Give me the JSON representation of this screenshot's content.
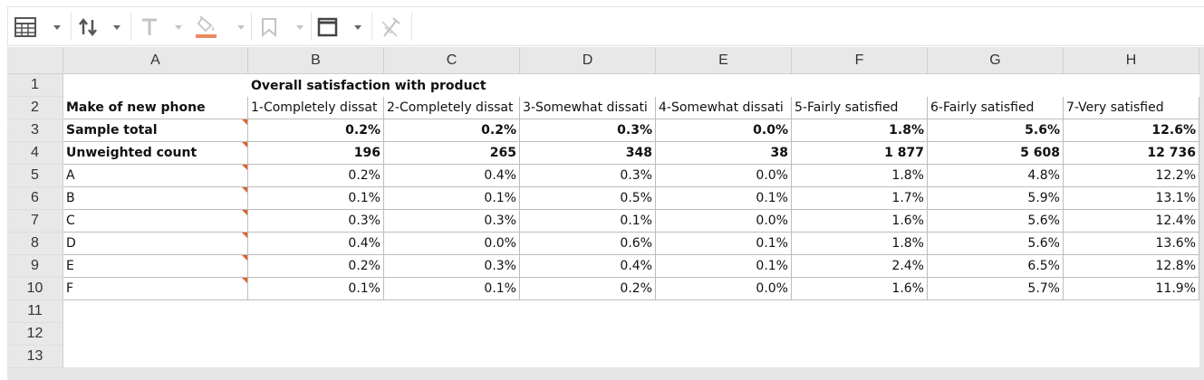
{
  "toolbar": {
    "buttons": [
      {
        "icon": "table-format-icon",
        "has_menu": true,
        "enabled": true
      },
      {
        "icon": "sort-icon",
        "has_menu": true,
        "enabled": true
      },
      {
        "icon": "text-format-icon",
        "has_menu": true,
        "enabled": false
      },
      {
        "icon": "fill-color-icon",
        "has_menu": true,
        "enabled": false,
        "color": "#e0632b"
      },
      {
        "icon": "bookmark-icon",
        "has_menu": true,
        "enabled": false
      },
      {
        "icon": "border-icon",
        "has_menu": true,
        "enabled": true
      },
      {
        "icon": "clear-format-icon",
        "has_menu": false,
        "enabled": false
      }
    ]
  },
  "grid": {
    "columns": [
      "A",
      "B",
      "C",
      "D",
      "E",
      "F",
      "G",
      "H"
    ],
    "row_numbers": [
      "1",
      "2",
      "3",
      "4",
      "5",
      "6",
      "7",
      "8",
      "9",
      "10",
      "11",
      "12",
      "13"
    ],
    "banner": "Overall satisfaction with product",
    "header_row": [
      "Make of new phone",
      "1-Completely dissat",
      "2-Completely dissat",
      "3-Somewhat dissati",
      "4-Somewhat dissati",
      "5-Fairly satisfied",
      "6-Fairly satisfied",
      "7-Very satisfied"
    ],
    "rows": [
      {
        "label": "Sample total",
        "bold": true,
        "values": [
          "0.2%",
          "0.2%",
          "0.3%",
          "0.0%",
          "1.8%",
          "5.6%",
          "12.6%"
        ]
      },
      {
        "label": "Unweighted count",
        "bold": true,
        "values": [
          "196",
          "265",
          "348",
          "38",
          "1 877",
          "5 608",
          "12 736"
        ]
      },
      {
        "label": "A",
        "bold": false,
        "values": [
          "0.2%",
          "0.4%",
          "0.3%",
          "0.0%",
          "1.8%",
          "4.8%",
          "12.2%"
        ]
      },
      {
        "label": "B",
        "bold": false,
        "values": [
          "0.1%",
          "0.1%",
          "0.5%",
          "0.1%",
          "1.7%",
          "5.9%",
          "13.1%"
        ]
      },
      {
        "label": "C",
        "bold": false,
        "values": [
          "0.3%",
          "0.3%",
          "0.1%",
          "0.0%",
          "1.6%",
          "5.6%",
          "12.4%"
        ]
      },
      {
        "label": "D",
        "bold": false,
        "values": [
          "0.4%",
          "0.0%",
          "0.6%",
          "0.1%",
          "1.8%",
          "5.6%",
          "13.6%"
        ]
      },
      {
        "label": "E",
        "bold": false,
        "values": [
          "0.2%",
          "0.3%",
          "0.4%",
          "0.1%",
          "2.4%",
          "6.5%",
          "12.8%"
        ]
      },
      {
        "label": "F",
        "bold": false,
        "values": [
          "0.1%",
          "0.1%",
          "0.2%",
          "0.0%",
          "1.6%",
          "5.7%",
          "11.9%"
        ]
      }
    ],
    "flag_color": "#e0632b"
  }
}
